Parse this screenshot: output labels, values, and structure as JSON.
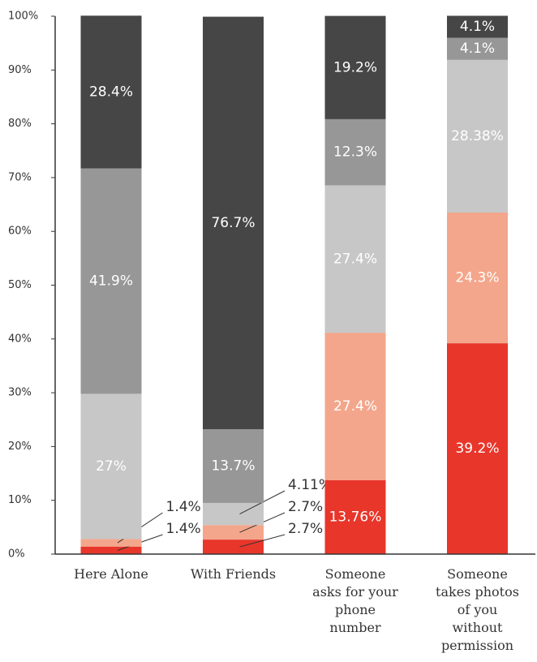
{
  "chart_data": {
    "type": "stacked_bar",
    "categories": [
      "Here Alone",
      "With Friends",
      "Someone asks for your phone number",
      "Someone takes photos of you without permission"
    ],
    "series": [
      {
        "color": "#e8362b",
        "values": [
          1.4,
          2.7,
          13.76,
          39.2
        ],
        "value_labels": [
          "1.4%",
          "2.7%",
          "13.76%",
          "39.2%"
        ]
      },
      {
        "color": "#f3a68b",
        "values": [
          1.4,
          2.7,
          27.4,
          24.3
        ],
        "value_labels": [
          "1.4%",
          "2.7%",
          "27.4%",
          "24.3%"
        ]
      },
      {
        "color": "#c7c7c7",
        "values": [
          27,
          4.11,
          27.4,
          28.38
        ],
        "value_labels": [
          "27%",
          "4.11%",
          "27.4%",
          "28.38%"
        ]
      },
      {
        "color": "#979797",
        "values": [
          41.9,
          13.7,
          12.3,
          4.1
        ],
        "value_labels": [
          "41.9%",
          "13.7%",
          "12.3%",
          "4.1%"
        ]
      },
      {
        "color": "#464646",
        "values": [
          28.4,
          76.7,
          19.2,
          4.1
        ],
        "value_labels": [
          "28.4%",
          "76.7%",
          "19.2%",
          "4.1%"
        ]
      }
    ],
    "ylim": [
      0,
      100
    ],
    "yticks": [
      {
        "value": 0,
        "label": "0%"
      },
      {
        "value": 10,
        "label": "10%"
      },
      {
        "value": 20,
        "label": "20%"
      },
      {
        "value": 30,
        "label": "30%"
      },
      {
        "value": 40,
        "label": "40%"
      },
      {
        "value": 50,
        "label": "50%"
      },
      {
        "value": 60,
        "label": "60%"
      },
      {
        "value": 70,
        "label": "70%"
      },
      {
        "value": 80,
        "label": "80%"
      },
      {
        "value": 90,
        "label": "90%"
      },
      {
        "value": 100,
        "label": "100%"
      }
    ]
  }
}
